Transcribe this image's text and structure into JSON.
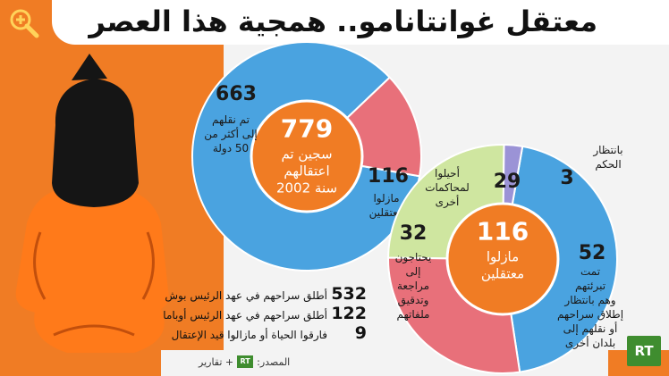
{
  "title": "معتقل غوانتانامو.. همجية هذا العصر",
  "zoom_icon": "zoom-in-icon",
  "chart_data": [
    {
      "type": "pie",
      "variant": "donut",
      "center_value": "779",
      "center_label_lines": [
        "سجين تم",
        "اعتقالهم",
        "سنة 2002"
      ],
      "slices": [
        {
          "value": 663,
          "label_lines": [
            "تم نقلهم",
            "إلى أكثر من",
            "50 دولة"
          ],
          "color": "#4aa3e0"
        },
        {
          "value": 116,
          "label_lines": [
            "مازلوا",
            "معتقلين"
          ],
          "color": "#e8707a"
        }
      ]
    },
    {
      "type": "pie",
      "variant": "donut",
      "center_value": "116",
      "center_label_lines": [
        "مازلوا",
        "معتقلين"
      ],
      "slices": [
        {
          "value": 52,
          "label_lines": [
            "تمت",
            "تبرئتهم",
            "وهم بانتظار",
            "إطلاق سراحهم",
            "أو نقلهم إلى",
            "بلدان أخرى"
          ],
          "color": "#4aa3e0"
        },
        {
          "value": 32,
          "label_lines": [
            "يحتاجون",
            "إلى",
            "مراجعة",
            "وتدقيق",
            "ملفاتهم"
          ],
          "color": "#e8707a"
        },
        {
          "value": 29,
          "label_lines": [
            "أحيلوا",
            "لمحاكمات",
            "أخرى"
          ],
          "color": "#cfe6a0"
        },
        {
          "value": 3,
          "label_lines": [
            "بانتظار",
            "الحكم"
          ],
          "color": "#9b93d6"
        }
      ]
    }
  ],
  "legend": [
    {
      "value": "532",
      "text": "أطلق سراحهم في عهد الرئيس بوش"
    },
    {
      "value": "122",
      "text": "أطلق سراحهم في عهد الرئيس أوباما"
    },
    {
      "value": "9",
      "text": "فارقوا الحياة أو مازالوا قيد الإعتقال"
    }
  ],
  "source": {
    "label": "المصدر:",
    "suffix": "+ تقارير",
    "logo_text": "RT"
  },
  "logo": {
    "text": "RT"
  },
  "colors": {
    "orange": "#f07c24",
    "blue": "#4aa3e0",
    "red": "#e8707a",
    "green": "#cfe6a0",
    "purple": "#9b93d6",
    "rt_green": "#3f8d2f"
  }
}
